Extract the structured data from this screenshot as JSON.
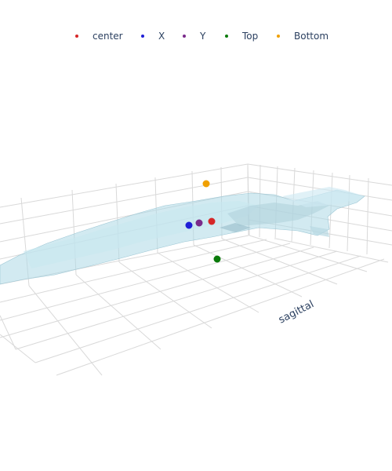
{
  "chart_data": {
    "type": "scatter",
    "title": "",
    "legend_placement": "top",
    "series": [
      {
        "name": "center",
        "color": "#d62728"
      },
      {
        "name": "X",
        "color": "#1f1fd6"
      },
      {
        "name": "Y",
        "color": "#7a2a8a"
      },
      {
        "name": "Top",
        "color": "#0a7a0a"
      },
      {
        "name": "Bottom",
        "color": "#f0a000"
      }
    ],
    "axes": {
      "visible_axis_title": "sagittal",
      "grid": true
    },
    "surface": {
      "description_color": "#add8e6"
    }
  },
  "legend": {
    "items": [
      {
        "label": "center",
        "color": "#d62728"
      },
      {
        "label": "X",
        "color": "#1f1fd6"
      },
      {
        "label": "Y",
        "color": "#7a2a8a"
      },
      {
        "label": "Top",
        "color": "#0a7a0a"
      },
      {
        "label": "Bottom",
        "color": "#f0a000"
      }
    ]
  }
}
